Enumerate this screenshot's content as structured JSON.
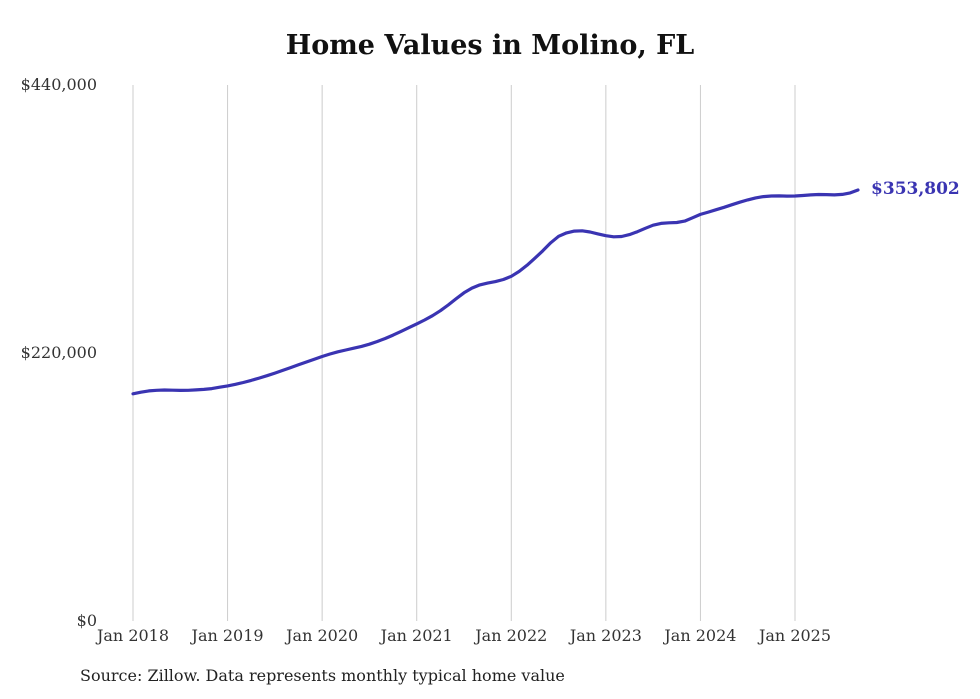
{
  "title": "Home Values in Molino, FL",
  "source_note": "Source: Zillow. Data represents monthly typical home value",
  "end_label": "$353,802",
  "colors": {
    "line": "#3a34b2",
    "grid": "#cccccc",
    "text": "#222222"
  },
  "chart_data": {
    "type": "line",
    "title": "Home Values in Molino, FL",
    "ylim": [
      0,
      440000
    ],
    "grid": "vertical-only",
    "legend": "none",
    "last_value": 353802,
    "last_value_label": "$353,802",
    "y_ticks": [
      {
        "label": "$0",
        "value": 0
      },
      {
        "label": "$220,000",
        "value": 220000
      },
      {
        "label": "$440,000",
        "value": 440000
      }
    ],
    "x_ticks": [
      "Jan 2018",
      "Jan 2019",
      "Jan 2020",
      "Jan 2021",
      "Jan 2022",
      "Jan 2023",
      "Jan 2024",
      "Jan 2025"
    ],
    "x": [
      "2018-01",
      "2018-02",
      "2018-03",
      "2018-04",
      "2018-05",
      "2018-06",
      "2018-07",
      "2018-08",
      "2018-09",
      "2018-10",
      "2018-11",
      "2018-12",
      "2019-01",
      "2019-02",
      "2019-03",
      "2019-04",
      "2019-05",
      "2019-06",
      "2019-07",
      "2019-08",
      "2019-09",
      "2019-10",
      "2019-11",
      "2019-12",
      "2020-01",
      "2020-02",
      "2020-03",
      "2020-04",
      "2020-05",
      "2020-06",
      "2020-07",
      "2020-08",
      "2020-09",
      "2020-10",
      "2020-11",
      "2020-12",
      "2021-01",
      "2021-02",
      "2021-03",
      "2021-04",
      "2021-05",
      "2021-06",
      "2021-07",
      "2021-08",
      "2021-09",
      "2021-10",
      "2021-11",
      "2021-12",
      "2022-01",
      "2022-02",
      "2022-03",
      "2022-04",
      "2022-05",
      "2022-06",
      "2022-07",
      "2022-08",
      "2022-09",
      "2022-10",
      "2022-11",
      "2022-12",
      "2023-01",
      "2023-02",
      "2023-03",
      "2023-04",
      "2023-05",
      "2023-06",
      "2023-07",
      "2023-08",
      "2023-09",
      "2023-10",
      "2023-11",
      "2023-12",
      "2024-01",
      "2024-02",
      "2024-03",
      "2024-04",
      "2024-05",
      "2024-06",
      "2024-07",
      "2024-08",
      "2024-09",
      "2024-10",
      "2024-11",
      "2024-12",
      "2025-01",
      "2025-02",
      "2025-03",
      "2025-04",
      "2025-05",
      "2025-06",
      "2025-07",
      "2025-08",
      "2025-09"
    ],
    "values": [
      186500,
      187800,
      188900,
      189400,
      189600,
      189500,
      189300,
      189400,
      189700,
      190100,
      190800,
      191900,
      193000,
      194300,
      195800,
      197500,
      199400,
      201400,
      203500,
      205700,
      208000,
      210300,
      212600,
      214900,
      217100,
      219200,
      221000,
      222500,
      223900,
      225400,
      227200,
      229400,
      231900,
      234700,
      237700,
      240800,
      243900,
      247100,
      250600,
      254700,
      259400,
      264500,
      269400,
      273300,
      275900,
      277400,
      278600,
      280300,
      283000,
      287000,
      292000,
      297800,
      303900,
      310500,
      315800,
      318600,
      320100,
      320300,
      319300,
      317800,
      316300,
      315400,
      315600,
      317200,
      319600,
      322400,
      324900,
      326400,
      326900,
      327100,
      328300,
      331000,
      333800,
      335700,
      337600,
      339600,
      341700,
      343800,
      345700,
      347300,
      348400,
      348900,
      349000,
      348800,
      348900,
      349300,
      349800,
      350100,
      350000,
      349800,
      350200,
      351400,
      353802
    ]
  }
}
